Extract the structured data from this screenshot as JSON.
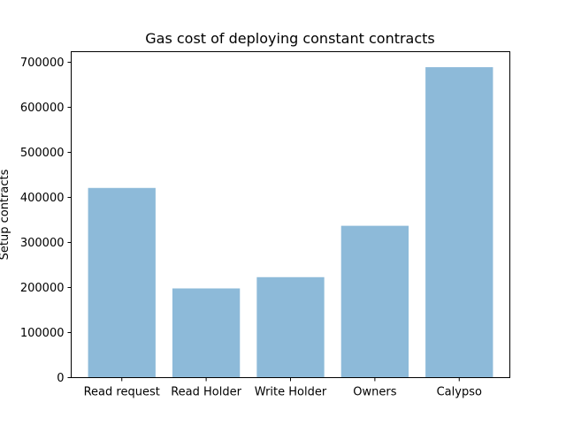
{
  "chart_data": {
    "type": "bar",
    "title": "Gas cost of deploying constant contracts",
    "xlabel": "",
    "ylabel": "Setup contracts",
    "categories": [
      "Read request",
      "Read Holder",
      "Write Holder",
      "Owners",
      "Calypso"
    ],
    "values": [
      421000,
      198000,
      223000,
      337000,
      689000
    ],
    "ylim": [
      0,
      723450
    ],
    "yticks": [
      0,
      100000,
      200000,
      300000,
      400000,
      500000,
      600000,
      700000
    ],
    "ytick_labels": [
      "0",
      "100000",
      "200000",
      "300000",
      "400000",
      "500000",
      "600000",
      "700000"
    ],
    "bar_color": "#8dbad9",
    "grid": false,
    "legend": "none"
  }
}
